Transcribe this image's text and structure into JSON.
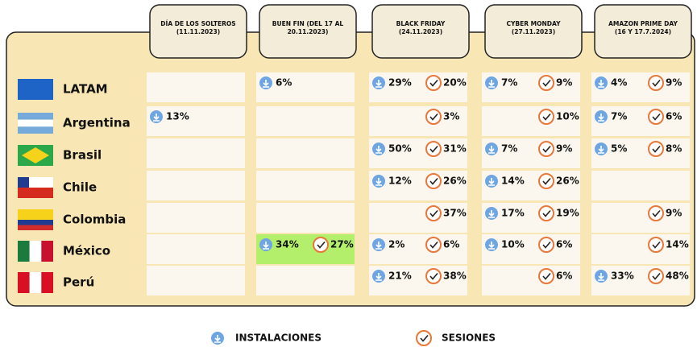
{
  "columns": [
    {
      "lines": [
        "DÍA DE LOS SOLTEROS",
        "(11.11.2023)"
      ]
    },
    {
      "lines": [
        "BUEN FIN (DEL 17 AL",
        "20.11.2023)"
      ]
    },
    {
      "lines": [
        "BLACK FRIDAY",
        "(24.11.2023)"
      ]
    },
    {
      "lines": [
        "CYBER MONDAY",
        "(27.11.2023)"
      ]
    },
    {
      "lines": [
        "AMAZON PRIME DAY",
        "(16 Y 17.7.2024)"
      ]
    }
  ],
  "rows": [
    {
      "label": "LATAM",
      "cells": [
        {},
        {
          "installs": "6%"
        },
        {
          "installs": "29%",
          "sessions": "20%"
        },
        {
          "installs": "7%",
          "sessions": "9%"
        },
        {
          "installs": "4%",
          "sessions": "9%"
        }
      ]
    },
    {
      "label": "Argentina",
      "cells": [
        {
          "installs": "13%"
        },
        {},
        {
          "sessions": "3%"
        },
        {
          "sessions": "10%"
        },
        {
          "installs": "7%",
          "sessions": "6%"
        }
      ]
    },
    {
      "label": "Brasil",
      "cells": [
        {},
        {},
        {
          "installs": "50%",
          "sessions": "31%"
        },
        {
          "installs": "7%",
          "sessions": "9%"
        },
        {
          "installs": "5%",
          "sessions": "8%"
        }
      ]
    },
    {
      "label": "Chile",
      "cells": [
        {},
        {},
        {
          "installs": "12%",
          "sessions": "26%"
        },
        {
          "installs": "14%",
          "sessions": "26%"
        },
        {}
      ]
    },
    {
      "label": "Colombia",
      "cells": [
        {},
        {},
        {
          "sessions": "37%"
        },
        {
          "installs": "17%",
          "sessions": "19%"
        },
        {
          "sessions": "9%"
        }
      ]
    },
    {
      "label": "México",
      "cells": [
        {},
        {
          "installs": "34%",
          "sessions": "27%",
          "highlight": true
        },
        {
          "installs": "2%",
          "sessions": "6%"
        },
        {
          "installs": "10%",
          "sessions": "6%"
        },
        {
          "sessions": "14%"
        }
      ]
    },
    {
      "label": "Perú",
      "cells": [
        {},
        {},
        {
          "installs": "21%",
          "sessions": "38%"
        },
        {
          "sessions": "6%"
        },
        {
          "installs": "33%",
          "sessions": "48%"
        }
      ]
    }
  ],
  "legend": {
    "installs": "INSTALACIONES",
    "sessions": "SESIONES"
  }
}
